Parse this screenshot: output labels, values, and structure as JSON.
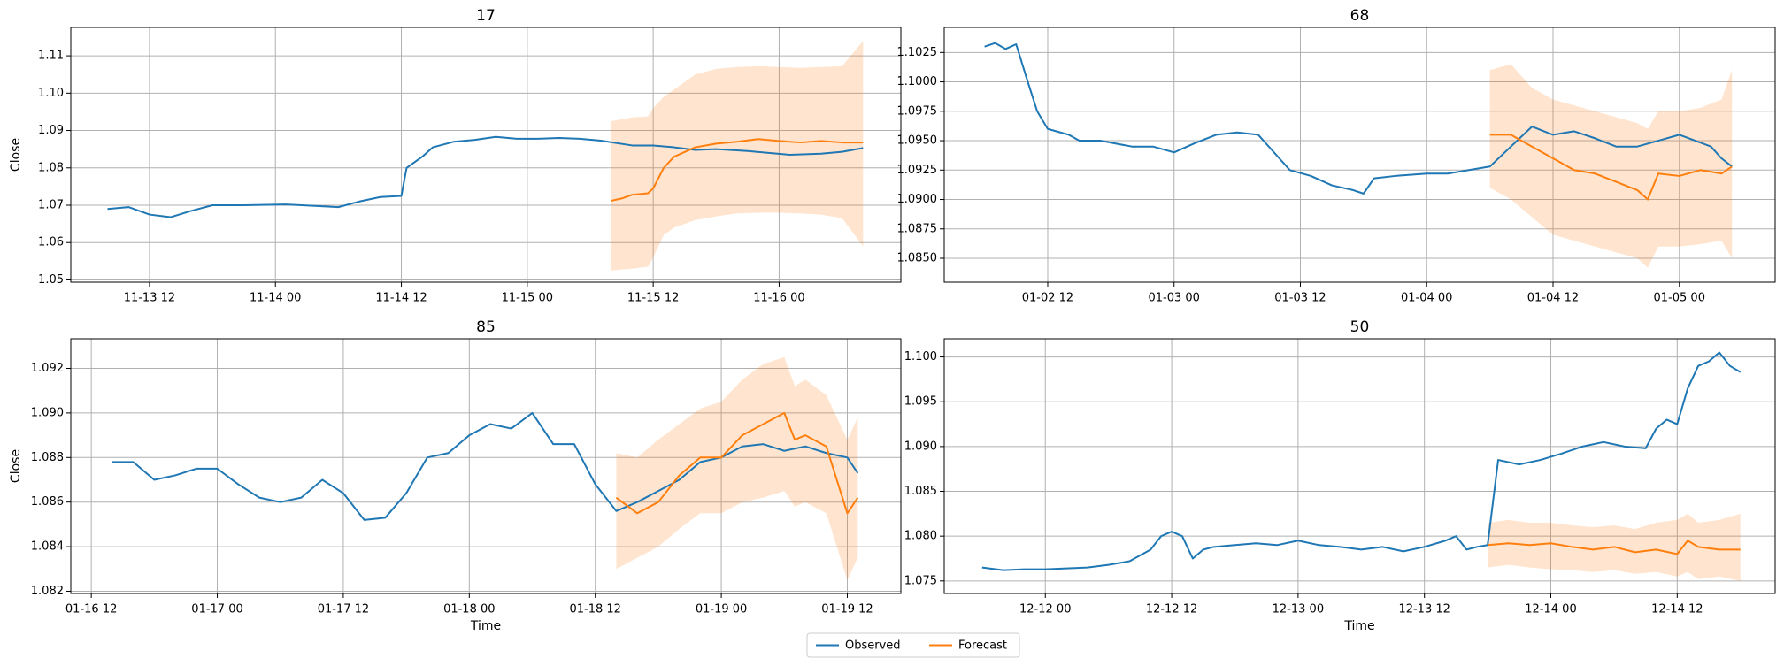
{
  "chart_data": [
    {
      "type": "line",
      "title": "17",
      "ylabel": "Close",
      "grid": true,
      "xlim": [
        "11-13 04:30",
        "11-16 11:36"
      ],
      "ylim": [
        1.0494,
        1.1176
      ],
      "xticks": [
        {
          "value": "11-13 12:00",
          "label": "11-13 12"
        },
        {
          "value": "11-14 00:00",
          "label": "11-14 00"
        },
        {
          "value": "11-14 12:00",
          "label": "11-14 12"
        },
        {
          "value": "11-15 00:00",
          "label": "11-15 00"
        },
        {
          "value": "11-15 12:00",
          "label": "11-15 12"
        },
        {
          "value": "11-16 00:00",
          "label": "11-16 00"
        }
      ],
      "yticks": [
        1.05,
        1.06,
        1.07,
        1.08,
        1.09,
        {
          "value": 1.1,
          "label": "1.10"
        },
        1.11
      ],
      "series": [
        {
          "name": "Observed",
          "color": "#1f77b4",
          "x": [
            "11-13 08:00",
            "11-13 10:00",
            "11-13 12:00",
            "11-13 14:00",
            "11-13 16:00",
            "11-13 18:00",
            "11-13 21:00",
            "11-14 01:00",
            "11-14 04:00",
            "11-14 06:00",
            "11-14 08:00",
            "11-14 10:00",
            "11-14 12:00",
            "11-14 12:30",
            "11-14 14:00",
            "11-14 15:00",
            "11-14 17:00",
            "11-14 19:00",
            "11-14 21:00",
            "11-14 23:00",
            "11-15 01:00",
            "11-15 03:00",
            "11-15 05:00",
            "11-15 07:00",
            "11-15 10:00",
            "11-15 12:00",
            "11-15 14:00",
            "11-15 16:00",
            "11-15 18:00",
            "11-15 21:00",
            "11-15 23:00",
            "11-16 01:00",
            "11-16 04:00",
            "11-16 06:00",
            "11-16 08:00"
          ],
          "values": [
            1.069,
            1.0695,
            1.0675,
            1.0668,
            1.0685,
            1.07,
            1.07,
            1.0702,
            1.0698,
            1.0695,
            1.071,
            1.0722,
            1.0725,
            1.08,
            1.083,
            1.0855,
            1.087,
            1.0875,
            1.0883,
            1.0878,
            1.0878,
            1.088,
            1.0878,
            1.0873,
            1.086,
            1.086,
            1.0855,
            1.0848,
            1.085,
            1.0845,
            1.084,
            1.0835,
            1.0838,
            1.0843,
            1.0853
          ]
        },
        {
          "name": "Forecast",
          "color": "#ff7f0e",
          "x": [
            "11-15 08:00",
            "11-15 09:00",
            "11-15 10:00",
            "11-15 11:30",
            "11-15 12:00",
            "11-15 13:00",
            "11-15 14:00",
            "11-15 16:00",
            "11-15 18:00",
            "11-15 20:00",
            "11-15 22:00",
            "11-16 00:00",
            "11-16 02:00",
            "11-16 04:00",
            "11-16 06:00",
            "11-16 08:00"
          ],
          "values": [
            1.0712,
            1.0718,
            1.0728,
            1.0732,
            1.0745,
            1.08,
            1.083,
            1.0855,
            1.0865,
            1.087,
            1.0877,
            1.0872,
            1.0868,
            1.0872,
            1.0868,
            1.0868
          ],
          "lower": [
            1.0525,
            1.0528,
            1.053,
            1.0535,
            1.056,
            1.062,
            1.064,
            1.066,
            1.067,
            1.0678,
            1.068,
            1.068,
            1.0678,
            1.0675,
            1.0665,
            1.059
          ],
          "upper": [
            1.0925,
            1.093,
            1.0935,
            1.0938,
            1.096,
            1.099,
            1.101,
            1.105,
            1.1065,
            1.107,
            1.1072,
            1.107,
            1.1068,
            1.107,
            1.1072,
            1.114
          ]
        }
      ]
    },
    {
      "type": "line",
      "title": "68",
      "grid": true,
      "xlim": [
        "01-02 02:10",
        "01-05 09:06"
      ],
      "ylim": [
        1.08297,
        1.10463
      ],
      "xticks": [
        {
          "value": "01-02 12:00",
          "label": "01-02 12"
        },
        {
          "value": "01-03 00:00",
          "label": "01-03 00"
        },
        {
          "value": "01-03 12:00",
          "label": "01-03 12"
        },
        {
          "value": "01-04 00:00",
          "label": "01-04 00"
        },
        {
          "value": "01-04 12:00",
          "label": "01-04 12"
        },
        {
          "value": "01-05 00:00",
          "label": "01-05 00"
        }
      ],
      "yticks": [
        {
          "value": 1.085,
          "label": "1.0850"
        },
        1.0875,
        {
          "value": 1.09,
          "label": "1.0900"
        },
        1.0925,
        {
          "value": 1.095,
          "label": "1.0950"
        },
        1.0975,
        {
          "value": 1.1,
          "label": "1.1000"
        },
        1.1025
      ],
      "series": [
        {
          "name": "Observed",
          "color": "#1f77b4",
          "x": [
            "01-02 06:00",
            "01-02 07:00",
            "01-02 08:00",
            "01-02 09:00",
            "01-02 10:00",
            "01-02 11:00",
            "01-02 12:00",
            "01-02 14:00",
            "01-02 15:00",
            "01-02 17:00",
            "01-02 20:00",
            "01-02 22:00",
            "01-03 00:00",
            "01-03 02:00",
            "01-03 04:00",
            "01-03 06:00",
            "01-03 08:00",
            "01-03 10:00",
            "01-03 11:00",
            "01-03 13:00",
            "01-03 15:00",
            "01-03 17:00",
            "01-03 18:00",
            "01-03 19:00",
            "01-03 21:00",
            "01-04 00:00",
            "01-04 02:00",
            "01-04 04:00",
            "01-04 06:00",
            "01-04 08:00",
            "01-04 10:00",
            "01-04 12:00",
            "01-04 14:00",
            "01-04 16:00",
            "01-04 18:00",
            "01-04 20:00",
            "01-04 22:00",
            "01-05 00:00",
            "01-05 03:00",
            "01-05 04:00",
            "01-05 05:00"
          ],
          "values": [
            1.103,
            1.1033,
            1.1028,
            1.1032,
            1.1003,
            1.0975,
            1.096,
            1.0955,
            1.095,
            1.095,
            1.0945,
            1.0945,
            1.094,
            1.0948,
            1.0955,
            1.0957,
            1.0955,
            1.0935,
            1.0925,
            1.092,
            1.0912,
            1.0908,
            1.0905,
            1.0918,
            1.092,
            1.0922,
            1.0922,
            1.0925,
            1.0928,
            1.0945,
            1.0962,
            1.0955,
            1.0958,
            1.0952,
            1.0945,
            1.0945,
            1.095,
            1.0955,
            1.0945,
            1.0935,
            1.0928
          ]
        },
        {
          "name": "Forecast",
          "color": "#ff7f0e",
          "x": [
            "01-04 06:00",
            "01-04 08:00",
            "01-04 10:00",
            "01-04 12:00",
            "01-04 14:00",
            "01-04 16:00",
            "01-04 18:00",
            "01-04 20:00",
            "01-04 21:00",
            "01-04 22:00",
            "01-05 00:00",
            "01-05 02:00",
            "01-05 04:00",
            "01-05 05:00"
          ],
          "values": [
            1.0955,
            1.0955,
            1.0945,
            1.0935,
            1.0925,
            1.0922,
            1.0915,
            1.0908,
            1.09,
            1.0922,
            1.092,
            1.0925,
            1.0922,
            1.0928
          ],
          "lower": [
            1.091,
            1.09,
            1.0885,
            1.087,
            1.0865,
            1.086,
            1.0855,
            1.085,
            1.0842,
            1.086,
            1.086,
            1.0862,
            1.0865,
            1.085
          ],
          "upper": [
            1.101,
            1.1015,
            1.0995,
            1.0985,
            1.098,
            1.0975,
            1.097,
            1.0965,
            1.096,
            1.0975,
            1.0975,
            1.0978,
            1.0985,
            1.101
          ]
        }
      ]
    },
    {
      "type": "line",
      "title": "85",
      "ylabel": "Close",
      "xlabel": "Time",
      "grid": true,
      "xlim": [
        "01-16 10:03",
        "01-19 17:06"
      ],
      "ylim": [
        1.0819,
        1.09333
      ],
      "xticks": [
        {
          "value": "01-16 12:00",
          "label": "01-16 12"
        },
        {
          "value": "01-17 00:00",
          "label": "01-17 00"
        },
        {
          "value": "01-17 12:00",
          "label": "01-17 12"
        },
        {
          "value": "01-18 00:00",
          "label": "01-18 00"
        },
        {
          "value": "01-18 12:00",
          "label": "01-18 12"
        },
        {
          "value": "01-19 00:00",
          "label": "01-19 00"
        },
        {
          "value": "01-19 12:00",
          "label": "01-19 12"
        }
      ],
      "yticks": [
        1.082,
        1.084,
        1.086,
        1.088,
        {
          "value": 1.09,
          "label": "1.090"
        },
        1.092
      ],
      "series": [
        {
          "name": "Observed",
          "color": "#1f77b4",
          "x": [
            "01-16 14:00",
            "01-16 16:00",
            "01-16 18:00",
            "01-16 20:00",
            "01-16 22:00",
            "01-17 00:00",
            "01-17 02:00",
            "01-17 04:00",
            "01-17 06:00",
            "01-17 08:00",
            "01-17 10:00",
            "01-17 12:00",
            "01-17 14:00",
            "01-17 16:00",
            "01-17 18:00",
            "01-17 20:00",
            "01-17 22:00",
            "01-18 00:00",
            "01-18 02:00",
            "01-18 04:00",
            "01-18 06:00",
            "01-18 08:00",
            "01-18 10:00",
            "01-18 12:00",
            "01-18 14:00",
            "01-18 16:00",
            "01-18 18:00",
            "01-18 20:00",
            "01-18 22:00",
            "01-19 00:00",
            "01-19 02:00",
            "01-19 04:00",
            "01-19 06:00",
            "01-19 08:00",
            "01-19 10:00",
            "01-19 12:00",
            "01-19 13:00"
          ],
          "values": [
            1.0878,
            1.0878,
            1.087,
            1.0872,
            1.0875,
            1.0875,
            1.0868,
            1.0862,
            1.086,
            1.0862,
            1.087,
            1.0864,
            1.0852,
            1.0853,
            1.0864,
            1.088,
            1.0882,
            1.089,
            1.0895,
            1.0893,
            1.09,
            1.0886,
            1.0886,
            1.0868,
            1.0856,
            1.086,
            1.0865,
            1.087,
            1.0878,
            1.088,
            1.0885,
            1.0886,
            1.0883,
            1.0885,
            1.0882,
            1.088,
            1.0873
          ]
        },
        {
          "name": "Forecast",
          "color": "#ff7f0e",
          "x": [
            "01-18 14:00",
            "01-18 16:00",
            "01-18 18:00",
            "01-18 20:00",
            "01-18 22:00",
            "01-19 00:00",
            "01-19 02:00",
            "01-19 04:00",
            "01-19 06:00",
            "01-19 07:00",
            "01-19 08:00",
            "01-19 10:00",
            "01-19 11:00",
            "01-19 12:00",
            "01-19 13:00"
          ],
          "values": [
            1.0862,
            1.0855,
            1.086,
            1.0872,
            1.088,
            1.088,
            1.089,
            1.0895,
            1.09,
            1.0888,
            1.089,
            1.0885,
            1.087,
            1.0855,
            1.0862
          ],
          "lower": [
            1.083,
            1.0835,
            1.084,
            1.0848,
            1.0855,
            1.0855,
            1.086,
            1.0862,
            1.0865,
            1.0858,
            1.086,
            1.0855,
            1.084,
            1.0825,
            1.0835
          ],
          "upper": [
            1.0882,
            1.088,
            1.0888,
            1.0895,
            1.0902,
            1.0905,
            1.0915,
            1.0922,
            1.0925,
            1.0912,
            1.0915,
            1.0908,
            1.0898,
            1.0888,
            1.0898
          ]
        }
      ]
    },
    {
      "type": "line",
      "title": "50",
      "xlabel": "Time",
      "grid": true,
      "xlim": [
        "12-11 14:24",
        "12-14 21:18"
      ],
      "ylim": [
        1.0736,
        1.10203
      ],
      "xticks": [
        {
          "value": "12-12 00:00",
          "label": "12-12 00"
        },
        {
          "value": "12-12 12:00",
          "label": "12-12 12"
        },
        {
          "value": "12-13 00:00",
          "label": "12-13 00"
        },
        {
          "value": "12-13 12:00",
          "label": "12-13 12"
        },
        {
          "value": "12-14 00:00",
          "label": "12-14 00"
        },
        {
          "value": "12-14 12:00",
          "label": "12-14 12"
        }
      ],
      "yticks": [
        1.075,
        {
          "value": 1.08,
          "label": "1.080"
        },
        1.085,
        {
          "value": 1.09,
          "label": "1.090"
        },
        1.095,
        {
          "value": 1.1,
          "label": "1.100"
        }
      ],
      "series": [
        {
          "name": "Observed",
          "color": "#1f77b4",
          "x": [
            "12-11 18:00",
            "12-11 20:00",
            "12-11 22:00",
            "12-12 00:00",
            "12-12 02:00",
            "12-12 04:00",
            "12-12 06:00",
            "12-12 08:00",
            "12-12 10:00",
            "12-12 11:00",
            "12-12 12:00",
            "12-12 13:00",
            "12-12 14:00",
            "12-12 15:00",
            "12-12 16:00",
            "12-12 18:00",
            "12-12 20:00",
            "12-12 22:00",
            "12-13 00:00",
            "12-13 02:00",
            "12-13 04:00",
            "12-13 06:00",
            "12-13 08:00",
            "12-13 10:00",
            "12-13 12:00",
            "12-13 14:00",
            "12-13 15:00",
            "12-13 16:00",
            "12-13 17:00",
            "12-13 18:00",
            "12-13 19:00",
            "12-13 21:00",
            "12-13 23:00",
            "12-14 01:00",
            "12-14 03:00",
            "12-14 05:00",
            "12-14 07:00",
            "12-14 09:00",
            "12-14 10:00",
            "12-14 11:00",
            "12-14 12:00",
            "12-14 13:00",
            "12-14 14:00",
            "12-14 15:00",
            "12-14 16:00",
            "12-14 17:00",
            "12-14 18:00"
          ],
          "values": [
            1.0765,
            1.0762,
            1.0763,
            1.0763,
            1.0764,
            1.0765,
            1.0768,
            1.0772,
            1.0785,
            1.08,
            1.0805,
            1.08,
            1.0775,
            1.0785,
            1.0788,
            1.079,
            1.0792,
            1.079,
            1.0795,
            1.079,
            1.0788,
            1.0785,
            1.0788,
            1.0783,
            1.0788,
            1.0795,
            1.08,
            1.0785,
            1.0788,
            1.079,
            1.0885,
            1.088,
            1.0885,
            1.0892,
            1.09,
            1.0905,
            1.09,
            1.0898,
            1.092,
            1.093,
            1.0925,
            1.0965,
            1.099,
            1.0995,
            1.1005,
            1.099,
            1.0983
          ]
        },
        {
          "name": "Forecast",
          "color": "#ff7f0e",
          "x": [
            "12-13 18:00",
            "12-13 20:00",
            "12-13 22:00",
            "12-14 00:00",
            "12-14 02:00",
            "12-14 04:00",
            "12-14 06:00",
            "12-14 08:00",
            "12-14 10:00",
            "12-14 12:00",
            "12-14 13:00",
            "12-14 14:00",
            "12-14 16:00",
            "12-14 18:00"
          ],
          "values": [
            1.079,
            1.0792,
            1.079,
            1.0792,
            1.0788,
            1.0785,
            1.0788,
            1.0782,
            1.0785,
            1.078,
            1.0795,
            1.0788,
            1.0785,
            1.0785
          ],
          "lower": [
            1.0765,
            1.0768,
            1.0765,
            1.0763,
            1.0762,
            1.076,
            1.0762,
            1.0758,
            1.076,
            1.0755,
            1.076,
            1.0752,
            1.0755,
            1.075
          ],
          "upper": [
            1.0815,
            1.0818,
            1.0815,
            1.0815,
            1.0812,
            1.081,
            1.0812,
            1.0808,
            1.0815,
            1.0818,
            1.0825,
            1.0815,
            1.0818,
            1.0825
          ]
        }
      ]
    }
  ]
}
